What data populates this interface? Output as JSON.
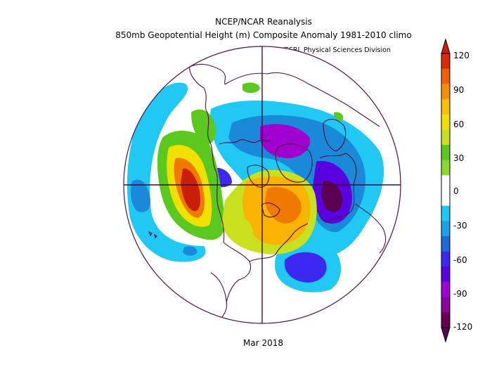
{
  "header": {
    "title": "NCEP/NCAR Reanalysis",
    "subtitle": "850mb Geopotential Height (m) Composite Anomaly 1981-2010 climo",
    "credit": "NOAA/ESRL Physical Sciences Division"
  },
  "footer": {
    "period": "Mar 2018"
  },
  "colorbar": {
    "ticks": [
      "120",
      "90",
      "60",
      "30",
      "0",
      "-30",
      "-60",
      "-90",
      "-120"
    ],
    "colors": [
      "#6a0052",
      "#8a00a0",
      "#a000d0",
      "#5a00e0",
      "#3c28f0",
      "#1a6ad8",
      "#1ea0e8",
      "#22c8f4",
      "#ffffff",
      "#ffffff",
      "#8ad830",
      "#5ac81e",
      "#c8e01e",
      "#f0e000",
      "#f8c000",
      "#f89000",
      "#f06000",
      "#e02800"
    ]
  },
  "map": {
    "projection": "north polar stereographic",
    "ocean_color": "#ffffff",
    "coast_color": "#4a1245",
    "anomaly_colors": {
      "pos_90_120": "#c81e0a",
      "pos_60_90": "#f07a00",
      "pos_45_60": "#f8b400",
      "pos_30_45": "#f0e000",
      "pos_15_30": "#c8e01e",
      "pos_0_15": "#5ac81e",
      "neg_0_15": "#22c8f4",
      "neg_15_30": "#1a8ad8",
      "neg_30_45": "#3c28f0",
      "neg_45_60": "#5a00e0",
      "neg_60_90": "#a000d0",
      "neg_90_120": "#5a0050"
    }
  }
}
